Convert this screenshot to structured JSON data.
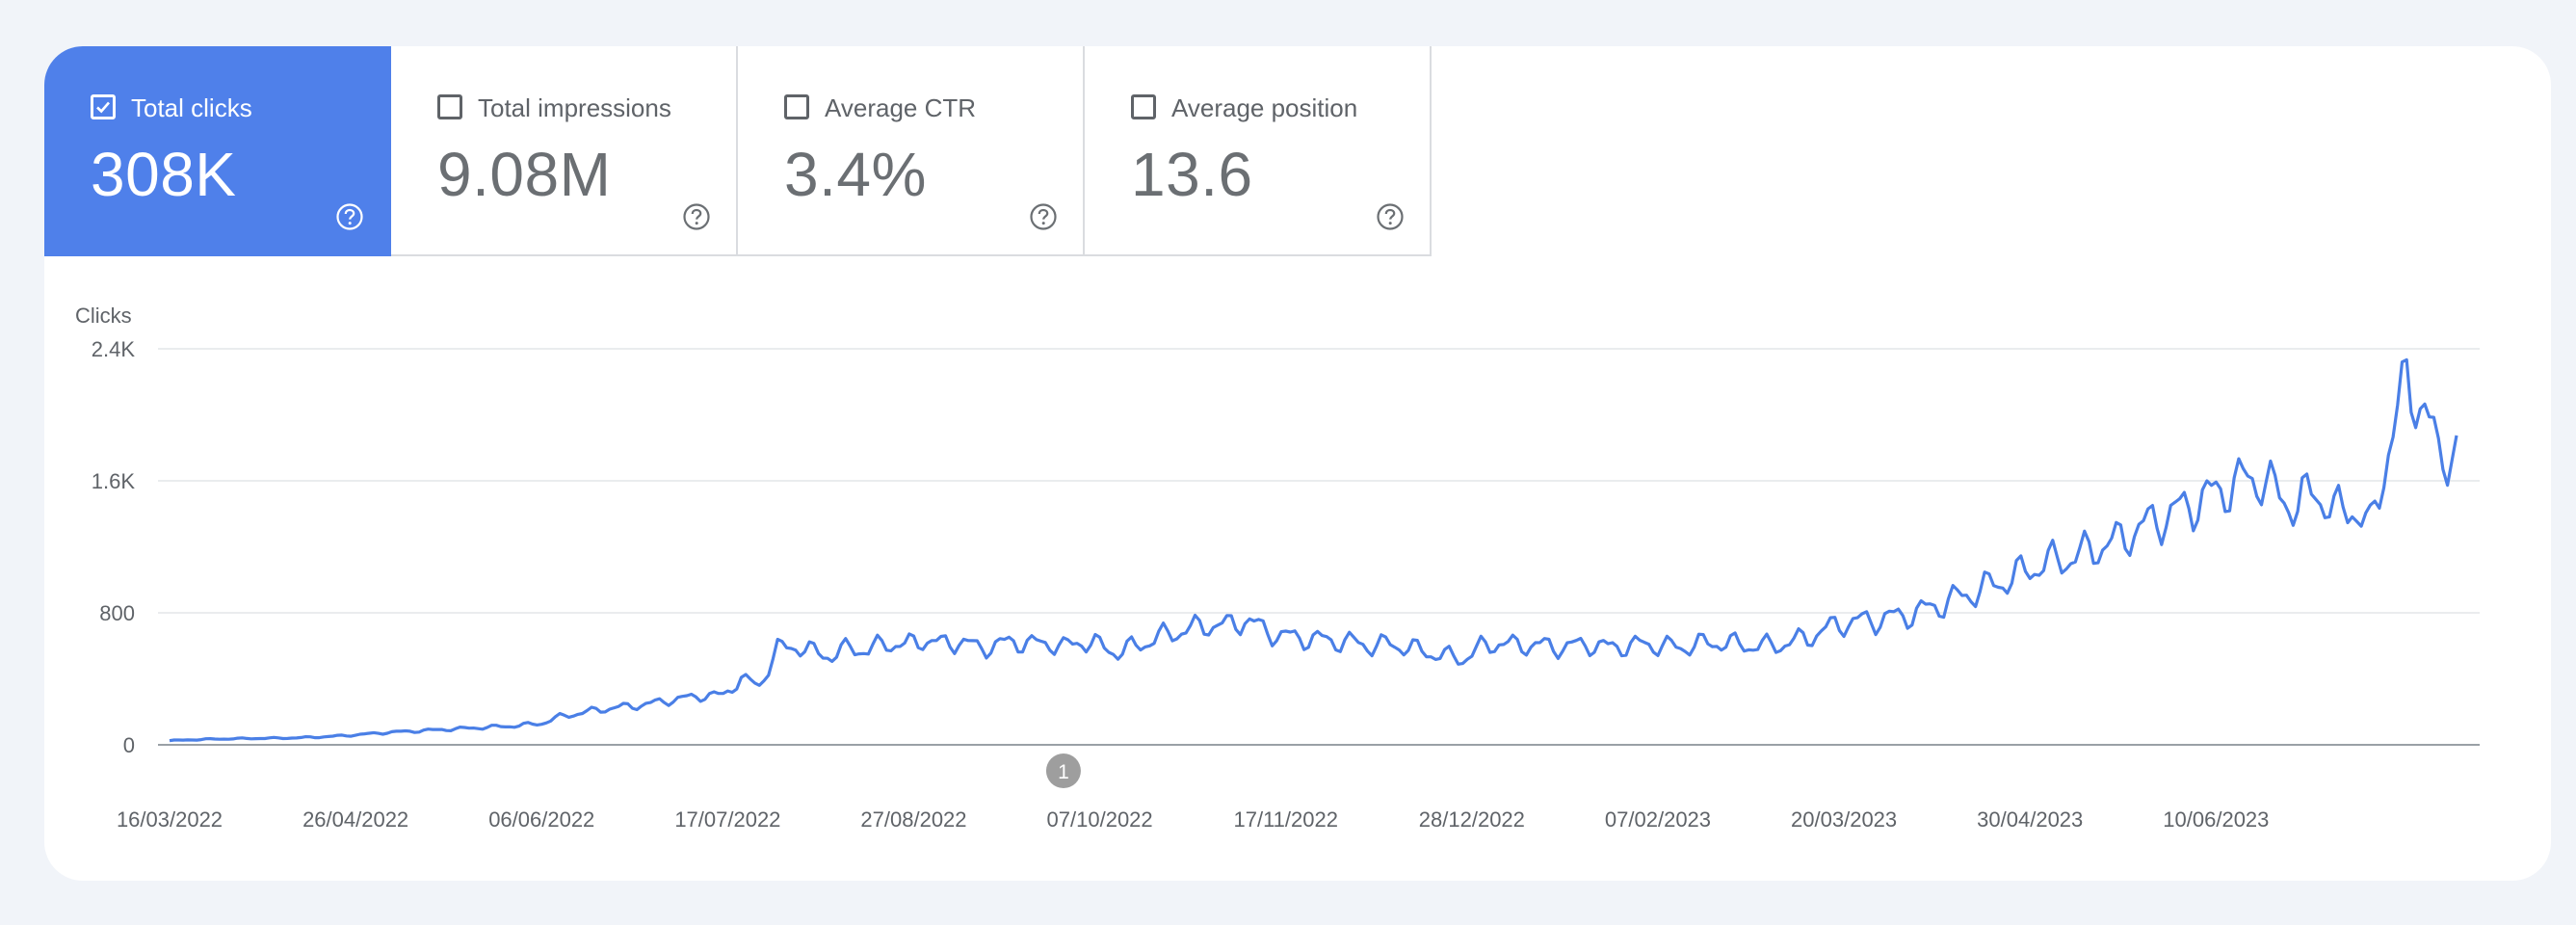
{
  "metrics": [
    {
      "label": "Total clicks",
      "value": "308K",
      "checked": true
    },
    {
      "label": "Total impressions",
      "value": "9.08M",
      "checked": false
    },
    {
      "label": "Average CTR",
      "value": "3.4%",
      "checked": false
    },
    {
      "label": "Average position",
      "value": "13.6",
      "checked": false
    }
  ],
  "colors": {
    "accent": "#4f80ea",
    "line": "#4a7fe6",
    "grid": "#e3e5e8",
    "baseline": "#9aa0a6",
    "annotation": "#9e9e9e"
  },
  "icons": {
    "checkbox_checked": "check-icon",
    "help": "help-circle-icon"
  },
  "chart_data": {
    "type": "line",
    "ylabel": "Clicks",
    "y_ticks": [
      {
        "value": 0,
        "label": "0"
      },
      {
        "value": 800,
        "label": "800"
      },
      {
        "value": 1600,
        "label": "1.6K"
      },
      {
        "value": 2400,
        "label": "2.4K"
      }
    ],
    "ylim": [
      0,
      2400
    ],
    "x_start": "2022-03-16",
    "x_end": "2023-08-02",
    "x_ticks": [
      {
        "date": "2022-03-16",
        "label": "16/03/2022"
      },
      {
        "date": "2022-04-26",
        "label": "26/04/2022"
      },
      {
        "date": "2022-06-06",
        "label": "06/06/2022"
      },
      {
        "date": "2022-07-17",
        "label": "17/07/2022"
      },
      {
        "date": "2022-08-27",
        "label": "27/08/2022"
      },
      {
        "date": "2022-10-07",
        "label": "07/10/2022"
      },
      {
        "date": "2022-11-17",
        "label": "17/11/2022"
      },
      {
        "date": "2022-12-28",
        "label": "28/12/2022"
      },
      {
        "date": "2023-02-07",
        "label": "07/02/2023"
      },
      {
        "date": "2023-03-20",
        "label": "20/03/2023"
      },
      {
        "date": "2023-04-30",
        "label": "30/04/2023"
      },
      {
        "date": "2023-06-10",
        "label": "10/06/2023"
      }
    ],
    "annotations": [
      {
        "date": "2022-09-29",
        "label": "1"
      }
    ],
    "series": [
      {
        "points": [
          [
            "2022-03-16",
            25
          ],
          [
            "2022-03-20",
            30
          ],
          [
            "2022-03-26",
            35
          ],
          [
            "2022-04-01",
            38
          ],
          [
            "2022-04-07",
            40
          ],
          [
            "2022-04-13",
            42
          ],
          [
            "2022-04-20",
            50
          ],
          [
            "2022-04-26",
            60
          ],
          [
            "2022-05-03",
            75
          ],
          [
            "2022-05-10",
            85
          ],
          [
            "2022-05-17",
            95
          ],
          [
            "2022-05-24",
            105
          ],
          [
            "2022-05-31",
            115
          ],
          [
            "2022-06-06",
            130
          ],
          [
            "2022-06-10",
            170
          ],
          [
            "2022-06-14",
            190
          ],
          [
            "2022-06-18",
            210
          ],
          [
            "2022-06-22",
            225
          ],
          [
            "2022-06-26",
            235
          ],
          [
            "2022-06-30",
            250
          ],
          [
            "2022-07-04",
            270
          ],
          [
            "2022-07-08",
            285
          ],
          [
            "2022-07-12",
            300
          ],
          [
            "2022-07-16",
            300
          ],
          [
            "2022-07-20",
            400
          ],
          [
            "2022-07-24",
            360
          ],
          [
            "2022-07-28",
            580
          ],
          [
            "2022-08-01",
            600
          ],
          [
            "2022-08-05",
            560
          ],
          [
            "2022-08-09",
            540
          ],
          [
            "2022-08-13",
            590
          ],
          [
            "2022-08-17",
            570
          ],
          [
            "2022-08-21",
            620
          ],
          [
            "2022-08-25",
            600
          ],
          [
            "2022-08-29",
            640
          ],
          [
            "2022-09-02",
            610
          ],
          [
            "2022-09-06",
            630
          ],
          [
            "2022-09-10",
            590
          ],
          [
            "2022-09-14",
            600
          ],
          [
            "2022-09-18",
            630
          ],
          [
            "2022-09-22",
            610
          ],
          [
            "2022-09-26",
            620
          ],
          [
            "2022-09-29",
            590
          ],
          [
            "2022-10-03",
            630
          ],
          [
            "2022-10-07",
            600
          ],
          [
            "2022-10-11",
            560
          ],
          [
            "2022-10-15",
            600
          ],
          [
            "2022-10-19",
            640
          ],
          [
            "2022-10-23",
            680
          ],
          [
            "2022-10-27",
            700
          ],
          [
            "2022-10-31",
            730
          ],
          [
            "2022-11-04",
            720
          ],
          [
            "2022-11-08",
            760
          ],
          [
            "2022-11-12",
            700
          ],
          [
            "2022-11-16",
            660
          ],
          [
            "2022-11-20",
            650
          ],
          [
            "2022-11-24",
            640
          ],
          [
            "2022-11-28",
            630
          ],
          [
            "2022-12-02",
            620
          ],
          [
            "2022-12-06",
            600
          ],
          [
            "2022-12-10",
            610
          ],
          [
            "2022-12-14",
            590
          ],
          [
            "2022-12-18",
            560
          ],
          [
            "2022-12-22",
            540
          ],
          [
            "2022-12-26",
            520
          ],
          [
            "2022-12-30",
            590
          ],
          [
            "2023-01-03",
            620
          ],
          [
            "2023-01-07",
            600
          ],
          [
            "2023-01-11",
            610
          ],
          [
            "2023-01-15",
            590
          ],
          [
            "2023-01-19",
            600
          ],
          [
            "2023-01-23",
            610
          ],
          [
            "2023-01-27",
            590
          ],
          [
            "2023-01-31",
            600
          ],
          [
            "2023-02-04",
            610
          ],
          [
            "2023-02-08",
            600
          ],
          [
            "2023-02-12",
            590
          ],
          [
            "2023-02-16",
            610
          ],
          [
            "2023-02-20",
            620
          ],
          [
            "2023-02-24",
            610
          ],
          [
            "2023-02-28",
            600
          ],
          [
            "2023-03-04",
            600
          ],
          [
            "2023-03-08",
            620
          ],
          [
            "2023-03-12",
            650
          ],
          [
            "2023-03-16",
            700
          ],
          [
            "2023-03-20",
            740
          ],
          [
            "2023-03-24",
            750
          ],
          [
            "2023-03-28",
            760
          ],
          [
            "2023-04-01",
            780
          ],
          [
            "2023-04-05",
            800
          ],
          [
            "2023-04-09",
            840
          ],
          [
            "2023-04-13",
            880
          ],
          [
            "2023-04-17",
            920
          ],
          [
            "2023-04-21",
            960
          ],
          [
            "2023-04-25",
            1000
          ],
          [
            "2023-04-29",
            1050
          ],
          [
            "2023-05-03",
            1100
          ],
          [
            "2023-05-07",
            1120
          ],
          [
            "2023-05-11",
            1150
          ],
          [
            "2023-05-15",
            1200
          ],
          [
            "2023-05-19",
            1230
          ],
          [
            "2023-05-23",
            1300
          ],
          [
            "2023-05-27",
            1350
          ],
          [
            "2023-05-31",
            1400
          ],
          [
            "2023-06-04",
            1450
          ],
          [
            "2023-06-08",
            1500
          ],
          [
            "2023-06-12",
            1560
          ],
          [
            "2023-06-16",
            1600
          ],
          [
            "2023-06-20",
            1620
          ],
          [
            "2023-06-24",
            1500
          ],
          [
            "2023-06-28",
            1450
          ],
          [
            "2023-07-02",
            1550
          ],
          [
            "2023-07-06",
            1400
          ],
          [
            "2023-07-10",
            1450
          ],
          [
            "2023-07-14",
            1300
          ],
          [
            "2023-07-18",
            1800
          ],
          [
            "2023-07-22",
            2200
          ],
          [
            "2023-07-26",
            2050
          ],
          [
            "2023-07-29",
            1730
          ],
          [
            "2023-08-02",
            1820
          ]
        ]
      }
    ]
  }
}
